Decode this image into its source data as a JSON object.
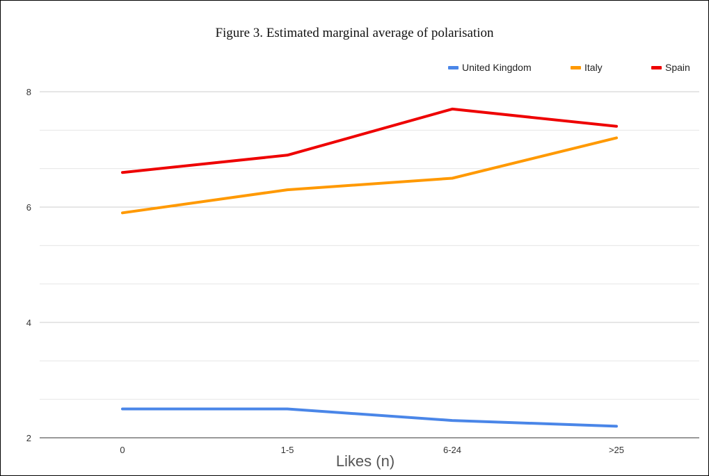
{
  "chart_data": {
    "type": "line",
    "title": "Figure 3. Estimated marginal average of polarisation",
    "xlabel": "Likes (n)",
    "ylabel": "",
    "categories": [
      "0",
      "1-5",
      "6-24",
      ">25"
    ],
    "ylim": [
      2,
      8
    ],
    "yticks": [
      2,
      4,
      6,
      8
    ],
    "grid": true,
    "legend_position": "top-right",
    "series": [
      {
        "name": "United Kingdom",
        "color": "#4a86e8",
        "values": [
          2.5,
          2.5,
          2.3,
          2.2
        ]
      },
      {
        "name": "Italy",
        "color": "#ff9900",
        "values": [
          5.9,
          6.3,
          6.5,
          7.2
        ]
      },
      {
        "name": "Spain",
        "color": "#ee0000",
        "values": [
          6.6,
          6.9,
          7.7,
          7.4
        ]
      }
    ]
  }
}
